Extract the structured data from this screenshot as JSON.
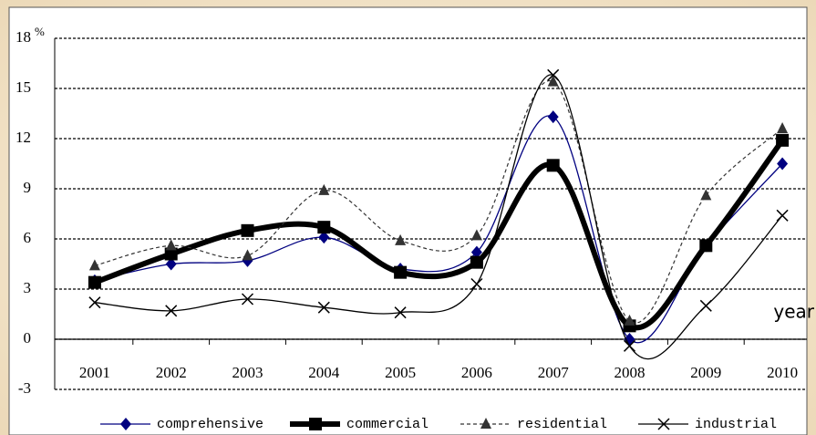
{
  "chart_data": {
    "type": "line",
    "y_unit": "%",
    "x_label": "year",
    "categories": [
      "2001",
      "2002",
      "2003",
      "2004",
      "2005",
      "2006",
      "2007",
      "2008",
      "2009",
      "2010"
    ],
    "series": [
      {
        "name": "comprehensive",
        "color": "#000080",
        "marker": "diamond",
        "style": "thin",
        "values": [
          3.5,
          4.5,
          4.7,
          6.1,
          4.2,
          5.2,
          13.3,
          0.0,
          5.6,
          10.5
        ]
      },
      {
        "name": "commercial",
        "color": "#000000",
        "marker": "square",
        "style": "thick",
        "values": [
          3.4,
          5.1,
          6.5,
          6.7,
          4.0,
          4.6,
          10.4,
          0.8,
          5.6,
          11.9
        ]
      },
      {
        "name": "residential",
        "color": "#333333",
        "marker": "triangle",
        "style": "dashed",
        "values": [
          4.4,
          5.6,
          5.0,
          8.9,
          5.9,
          6.2,
          15.4,
          1.1,
          8.6,
          12.6
        ]
      },
      {
        "name": "industrial",
        "color": "#000000",
        "marker": "cross",
        "style": "thin",
        "values": [
          2.2,
          1.7,
          2.4,
          1.9,
          1.6,
          3.3,
          15.8,
          -0.4,
          2.0,
          7.4
        ]
      }
    ],
    "ylim": [
      -3,
      18
    ],
    "yticks": [
      -3,
      0,
      3,
      6,
      9,
      12,
      15,
      18
    ],
    "grid": true
  }
}
